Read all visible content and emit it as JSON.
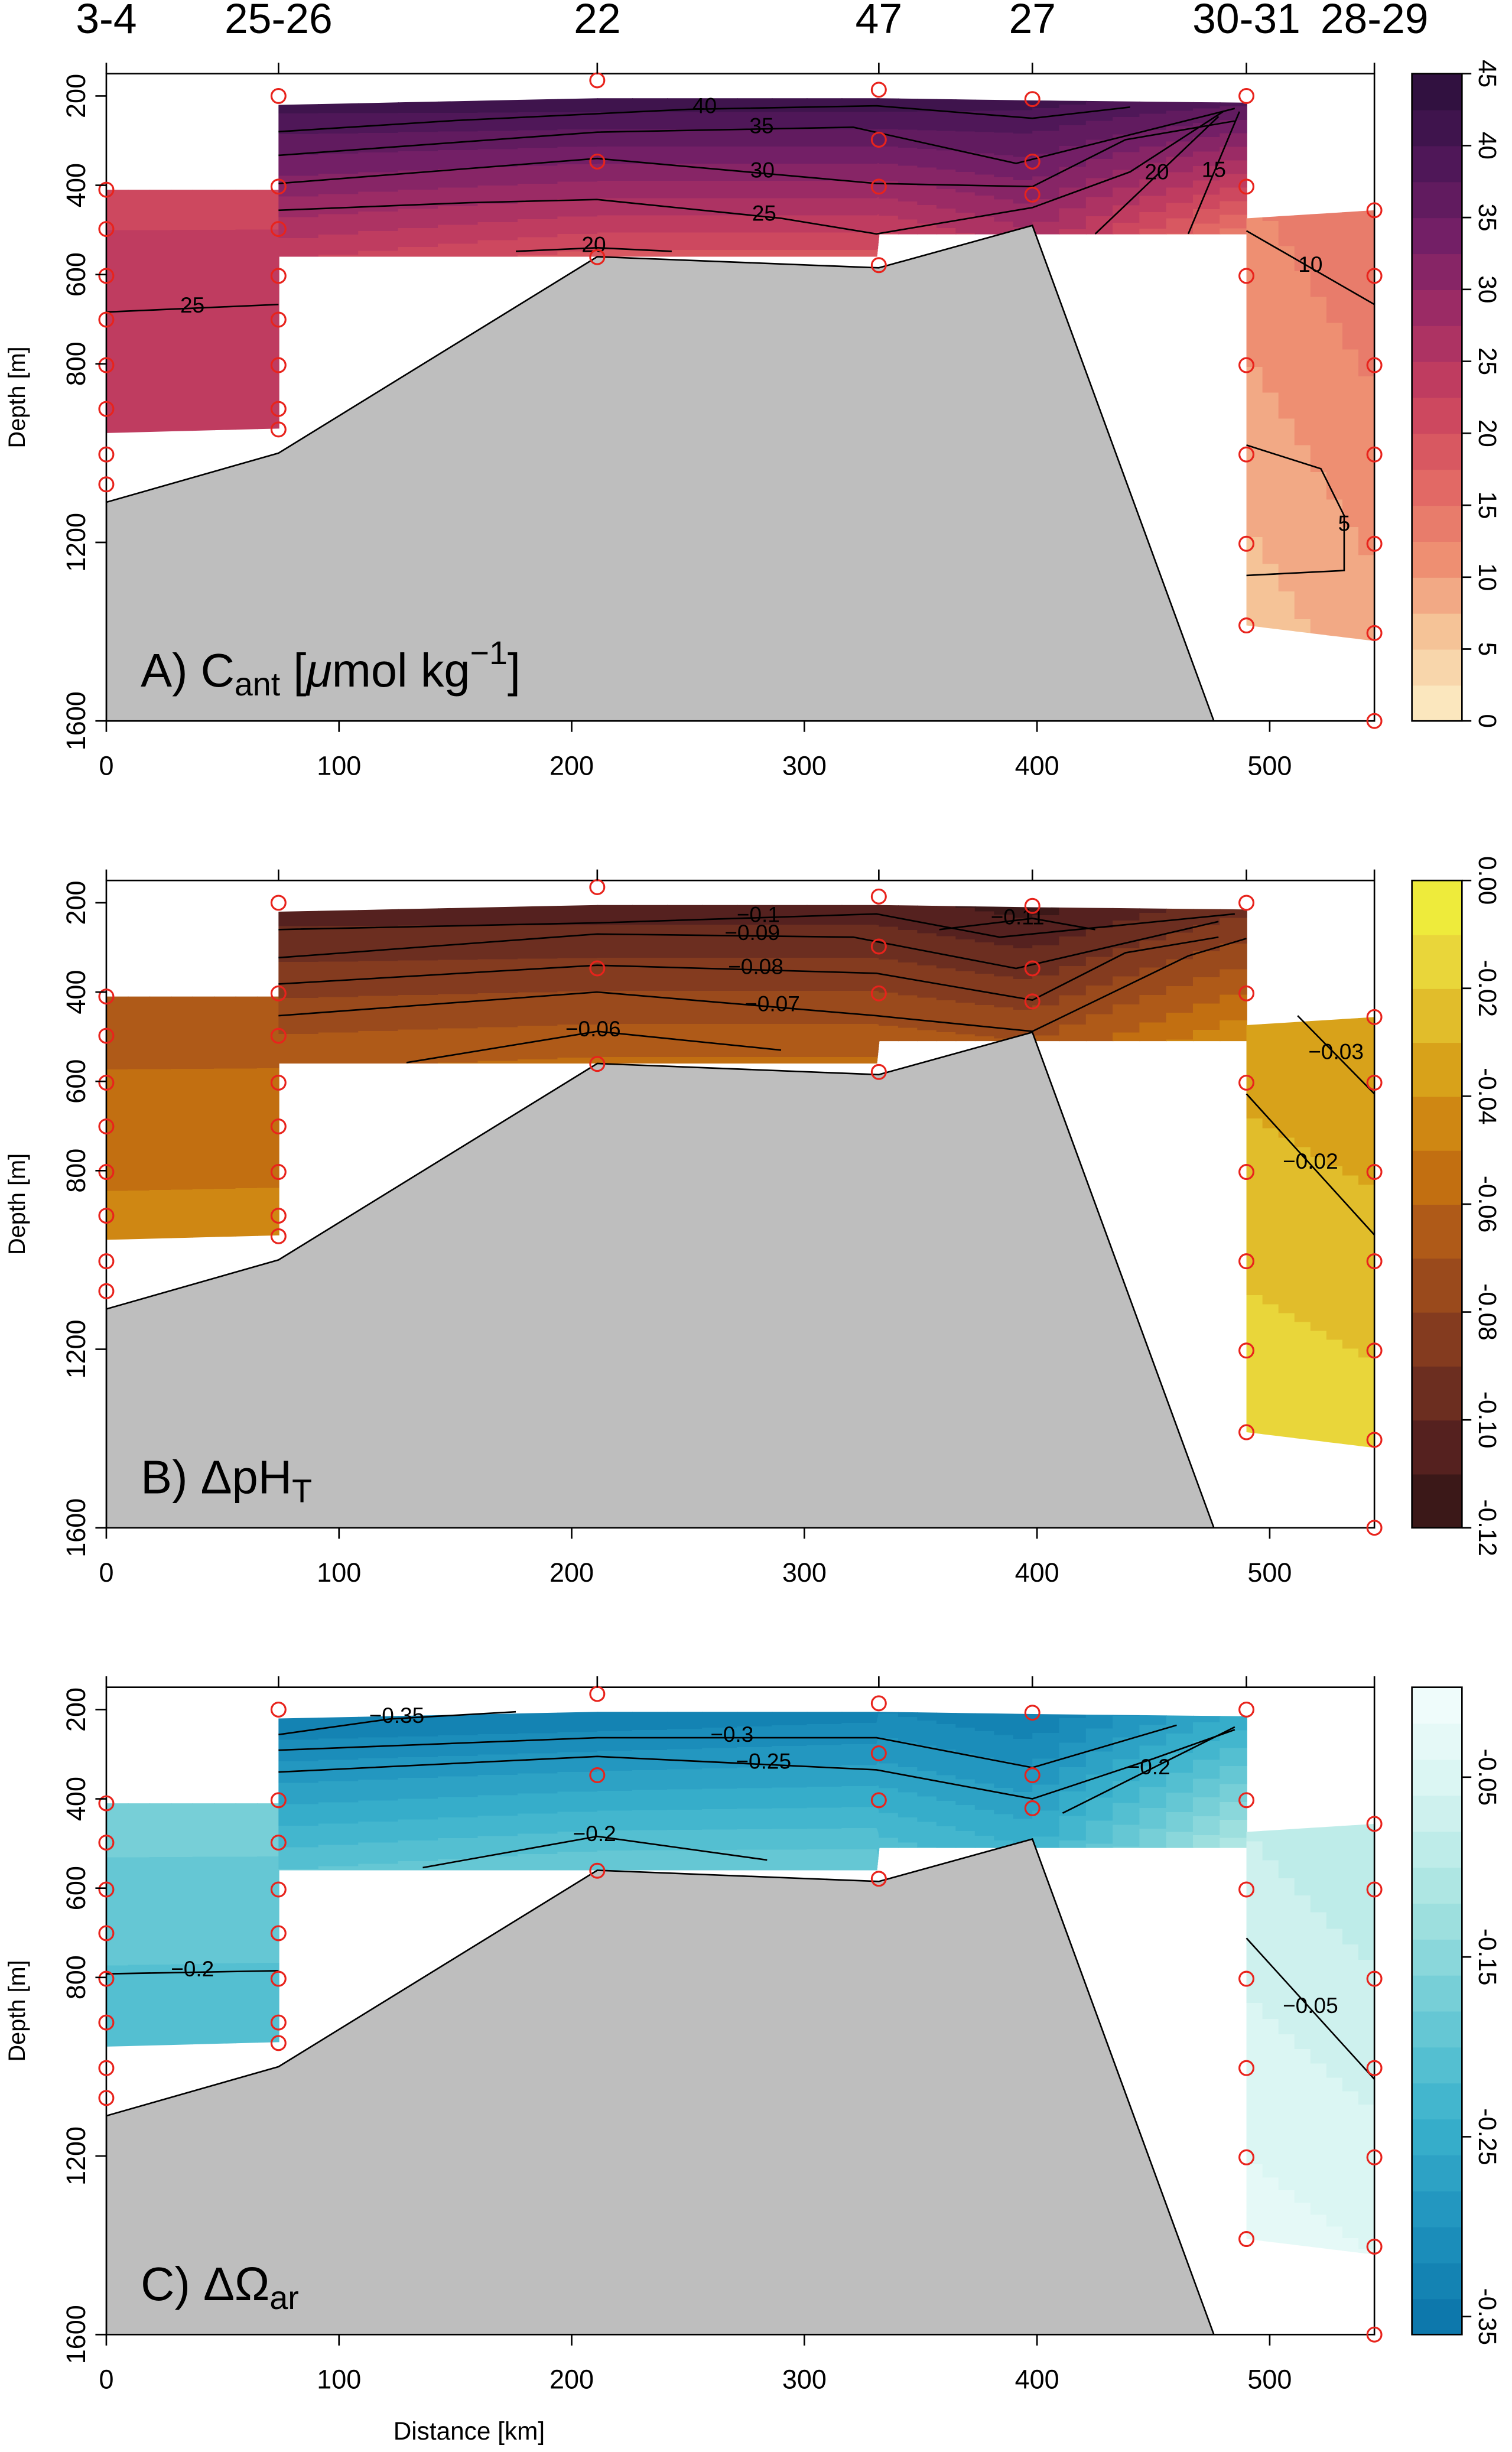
{
  "section": {
    "xlabel": "Distance [km]",
    "stations": {
      "names": [
        "3-4",
        "25-26",
        "22",
        "47",
        "27",
        "30-31",
        "28-29"
      ],
      "x": [
        0,
        74,
        211,
        332,
        398,
        490,
        545
      ]
    },
    "samples": {
      "x": [
        0,
        0,
        0,
        0,
        0,
        0,
        0,
        0,
        74,
        74,
        74,
        74,
        74,
        74,
        74,
        74,
        211,
        211,
        211,
        332,
        332,
        332,
        332,
        398,
        398,
        398,
        490,
        490,
        490,
        490,
        490,
        490,
        490,
        545,
        545,
        545,
        545,
        545,
        545,
        545
      ],
      "depth": [
        410,
        498,
        603,
        701,
        803,
        901,
        1003,
        1070,
        200,
        403,
        498,
        603,
        701,
        803,
        901,
        947,
        165,
        347,
        561,
        186,
        298,
        403,
        579,
        207,
        347,
        421,
        200,
        403,
        603,
        803,
        1003,
        1203,
        1386,
        456,
        603,
        803,
        1003,
        1203,
        1403,
        1600
      ]
    },
    "bathymetry": {
      "x": [
        0,
        74,
        211,
        332,
        398,
        476
      ],
      "depth": [
        1110,
        1000,
        560,
        585,
        490,
        1600
      ],
      "color": "#bebebe"
    }
  },
  "chart_data": [
    {
      "type": "contour",
      "label_parts": [
        {
          "text": "A) C"
        },
        {
          "text": "ant",
          "shift": "sub"
        },
        {
          "text": " ["
        },
        {
          "text": "μ",
          "italic": true
        },
        {
          "text": "mol kg"
        },
        {
          "text": "−1",
          "shift": "sup"
        },
        {
          "text": "]"
        }
      ],
      "ylabel": "Depth [m]",
      "xlim": [
        0,
        545
      ],
      "xticks": [
        0,
        100,
        200,
        300,
        400,
        500
      ],
      "ylim": [
        150,
        1600
      ],
      "y_inverted": true,
      "yticks": [
        200,
        400,
        600,
        800,
        1200,
        1600
      ],
      "colorbar": {
        "clim": [
          0,
          45
        ],
        "nlevels": 18,
        "ticks": [
          0,
          5,
          10,
          15,
          20,
          25,
          30,
          35,
          40,
          45
        ],
        "colormap": [
          "#fdf0c8",
          "#f6c99c",
          "#ee8f72",
          "#e06463",
          "#c8405e",
          "#a02c65",
          "#731f66",
          "#4a1656",
          "#2a0f3a"
        ]
      },
      "regions": [
        {
          "x": [
            0,
            74
          ],
          "top": [
            410,
            410
          ],
          "bottom": [
            955,
            945
          ],
          "value_top": [
            22,
            22
          ],
          "value_bottom": [
            25,
            25
          ]
        },
        {
          "x": [
            74,
            211,
            331,
            332,
            398,
            490
          ],
          "top": [
            220,
            205,
            205,
            205,
            210,
            215
          ],
          "bottom": [
            560,
            560,
            560,
            510,
            510,
            510
          ],
          "value_top": [
            41,
            42,
            42,
            42,
            41,
            38
          ],
          "value_bottom": [
            23,
            19,
            19,
            22,
            27,
            13
          ]
        },
        {
          "x": [
            490,
            545
          ],
          "top": [
            474,
            456
          ],
          "bottom": [
            1386,
            1421
          ],
          "value_top": [
            12,
            15
          ],
          "value_bottom": [
            6,
            9
          ]
        }
      ],
      "contours": [
        {
          "level": 40,
          "x": [
            74,
            150,
            250,
            331,
            398,
            440
          ],
          "depth": [
            280,
            255,
            230,
            222,
            250,
            225
          ]
        },
        {
          "level": 35,
          "x": [
            74,
            211,
            321,
            391,
            485
          ],
          "depth": [
            333,
            281,
            270,
            351,
            228
          ]
        },
        {
          "level": 30,
          "x": [
            74,
            211,
            331,
            398,
            438,
            485
          ],
          "depth": [
            396,
            340,
            396,
            403,
            298,
            256
          ]
        },
        {
          "level": 25,
          "x": [
            74,
            156,
            211,
            290,
            331,
            398,
            440,
            480
          ],
          "depth": [
            456,
            439,
            432,
            474,
            509,
            450,
            370,
            235
          ]
        },
        {
          "level": 20,
          "x": [
            176,
            211,
            243
          ],
          "depth": [
            548,
            540,
            548
          ]
        },
        {
          "level": 20,
          "x": [
            425,
            478
          ],
          "depth": [
            509,
            246
          ]
        },
        {
          "level": 15,
          "x": [
            465,
            487
          ],
          "depth": [
            509,
            235
          ]
        },
        {
          "level": 25,
          "x": [
            0,
            74
          ],
          "depth": [
            684,
            667
          ]
        },
        {
          "level": 10,
          "x": [
            490,
            545
          ],
          "depth": [
            502,
            667
          ]
        },
        {
          "level": 5,
          "x": [
            490,
            522,
            532,
            532,
            490
          ],
          "depth": [
            982,
            1035,
            1140,
            1263,
            1274
          ]
        }
      ]
    },
    {
      "type": "contour",
      "label_parts": [
        {
          "text": "B) ΔpH"
        },
        {
          "text": "T",
          "shift": "sub"
        }
      ],
      "ylabel": "Depth [m]",
      "xlim": [
        0,
        545
      ],
      "xticks": [
        0,
        100,
        200,
        300,
        400,
        500
      ],
      "ylim": [
        150,
        1600
      ],
      "y_inverted": true,
      "yticks": [
        200,
        400,
        600,
        800,
        1200,
        1600
      ],
      "colorbar": {
        "clim": [
          -0.12,
          0
        ],
        "nlevels": 12,
        "ticks": [
          {
            "value": 0,
            "label": "0.00"
          },
          -0.02,
          -0.04,
          -0.06,
          -0.08,
          {
            "value": -0.1,
            "label": "-0.10"
          },
          -0.12
        ],
        "colormap": [
          "#2e1315",
          "#5a2320",
          "#823a1f",
          "#a8531a",
          "#c9760f",
          "#d9a41a",
          "#e8d23a",
          "#f0f53c"
        ]
      },
      "regions": [
        {
          "x": [
            0,
            74
          ],
          "top": [
            410,
            410
          ],
          "bottom": [
            955,
            945
          ],
          "value_top": [
            -0.066,
            -0.066
          ],
          "value_bottom": [
            -0.046,
            -0.046
          ]
        },
        {
          "x": [
            74,
            211,
            331,
            332,
            398,
            490
          ],
          "top": [
            220,
            205,
            205,
            205,
            210,
            215
          ],
          "bottom": [
            560,
            560,
            560,
            510,
            510,
            510
          ],
          "value_top": [
            -0.104,
            -0.106,
            -0.106,
            -0.106,
            -0.114,
            -0.092
          ],
          "value_bottom": [
            -0.062,
            -0.058,
            -0.058,
            -0.065,
            -0.07,
            -0.04
          ]
        },
        {
          "x": [
            490,
            545
          ],
          "top": [
            474,
            456
          ],
          "bottom": [
            1386,
            1421
          ],
          "value_top": [
            -0.035,
            -0.04
          ],
          "value_bottom": [
            -0.012,
            -0.015
          ]
        }
      ],
      "contours": [
        {
          "level": -0.11,
          "label": "−0.11",
          "x": [
            358,
            398,
            425
          ],
          "depth": [
            260,
            235,
            260
          ]
        },
        {
          "level": -0.1,
          "label": "−0.1",
          "x": [
            74,
            211,
            331,
            384,
            485
          ],
          "depth": [
            260,
            245,
            225,
            277,
            225
          ]
        },
        {
          "level": -0.09,
          "label": "−0.09",
          "x": [
            74,
            211,
            321,
            391,
            478
          ],
          "depth": [
            323,
            270,
            277,
            347,
            242
          ]
        },
        {
          "level": -0.08,
          "label": "−0.08",
          "x": [
            74,
            211,
            331,
            398,
            438,
            478
          ],
          "depth": [
            382,
            340,
            358,
            418,
            312,
            277
          ]
        },
        {
          "level": -0.07,
          "label": "−0.07",
          "x": [
            74,
            211,
            331,
            398,
            465,
            490
          ],
          "depth": [
            453,
            400,
            453,
            488,
            319,
            280
          ]
        },
        {
          "level": -0.06,
          "label": "−0.06",
          "x": [
            129,
            211,
            290
          ],
          "depth": [
            558,
            488,
            530
          ]
        },
        {
          "level": -0.03,
          "label": "−0.03",
          "x": [
            512,
            545
          ],
          "depth": [
            453,
            628
          ]
        },
        {
          "level": -0.02,
          "label": "−0.02",
          "x": [
            490,
            545
          ],
          "depth": [
            628,
            944
          ]
        }
      ]
    },
    {
      "type": "contour",
      "label_parts": [
        {
          "text": "C) ΔΩ"
        },
        {
          "text": "ar",
          "shift": "sub"
        }
      ],
      "ylabel": "Depth [m]",
      "xlim": [
        0,
        545
      ],
      "xticks": [
        0,
        100,
        200,
        300,
        400,
        500
      ],
      "ylim": [
        150,
        1600
      ],
      "y_inverted": true,
      "yticks": [
        200,
        400,
        600,
        800,
        1200,
        1600
      ],
      "colorbar": {
        "clim": [
          -0.36,
          0
        ],
        "nlevels": 18,
        "ticks": [
          -0.05,
          -0.15,
          -0.25,
          -0.35
        ],
        "colormap": [
          "#0a73a8",
          "#1e92bd",
          "#3bb2cc",
          "#6dcbd5",
          "#a6e3e0",
          "#d6f4f1",
          "#f4fdfd"
        ]
      },
      "regions": [
        {
          "x": [
            0,
            74
          ],
          "top": [
            410,
            410
          ],
          "bottom": [
            955,
            945
          ],
          "value_top": [
            -0.17,
            -0.17
          ],
          "value_bottom": [
            -0.215,
            -0.215
          ]
        },
        {
          "x": [
            74,
            211,
            331,
            332,
            398,
            490
          ],
          "top": [
            220,
            205,
            205,
            205,
            210,
            215
          ],
          "bottom": [
            560,
            560,
            560,
            510,
            510,
            510
          ],
          "value_top": [
            -0.34,
            -0.34,
            -0.33,
            -0.32,
            -0.34,
            -0.25
          ],
          "value_bottom": [
            -0.2,
            -0.18,
            -0.18,
            -0.21,
            -0.24,
            -0.1
          ]
        },
        {
          "x": [
            490,
            545
          ],
          "top": [
            474,
            456
          ],
          "bottom": [
            1386,
            1421
          ],
          "value_top": [
            -0.08,
            -0.1
          ],
          "value_bottom": [
            -0.03,
            -0.04
          ]
        }
      ],
      "contours": [
        {
          "level": -0.35,
          "label": "−0.35",
          "x": [
            74,
            122,
            176
          ],
          "depth": [
            256,
            221,
            205
          ]
        },
        {
          "level": -0.3,
          "label": "−0.3",
          "x": [
            74,
            211,
            331,
            398,
            460
          ],
          "depth": [
            291,
            263,
            263,
            330,
            235
          ]
        },
        {
          "level": -0.25,
          "label": "−0.25",
          "x": [
            74,
            211,
            331,
            398,
            450,
            485
          ],
          "depth": [
            340,
            305,
            335,
            400,
            310,
            245
          ]
        },
        {
          "level": -0.2,
          "label": "−0.2",
          "x": [
            411,
            485
          ],
          "depth": [
            432,
            239
          ]
        },
        {
          "level": -0.2,
          "label": "−0.2",
          "x": [
            136,
            211,
            284
          ],
          "depth": [
            554,
            484,
            537
          ]
        },
        {
          "level": -0.2,
          "label": "−0.2",
          "x": [
            0,
            74
          ],
          "depth": [
            792,
            785
          ]
        },
        {
          "level": -0.05,
          "label": "−0.05",
          "x": [
            490,
            545
          ],
          "depth": [
            712,
            1028
          ]
        }
      ]
    }
  ]
}
